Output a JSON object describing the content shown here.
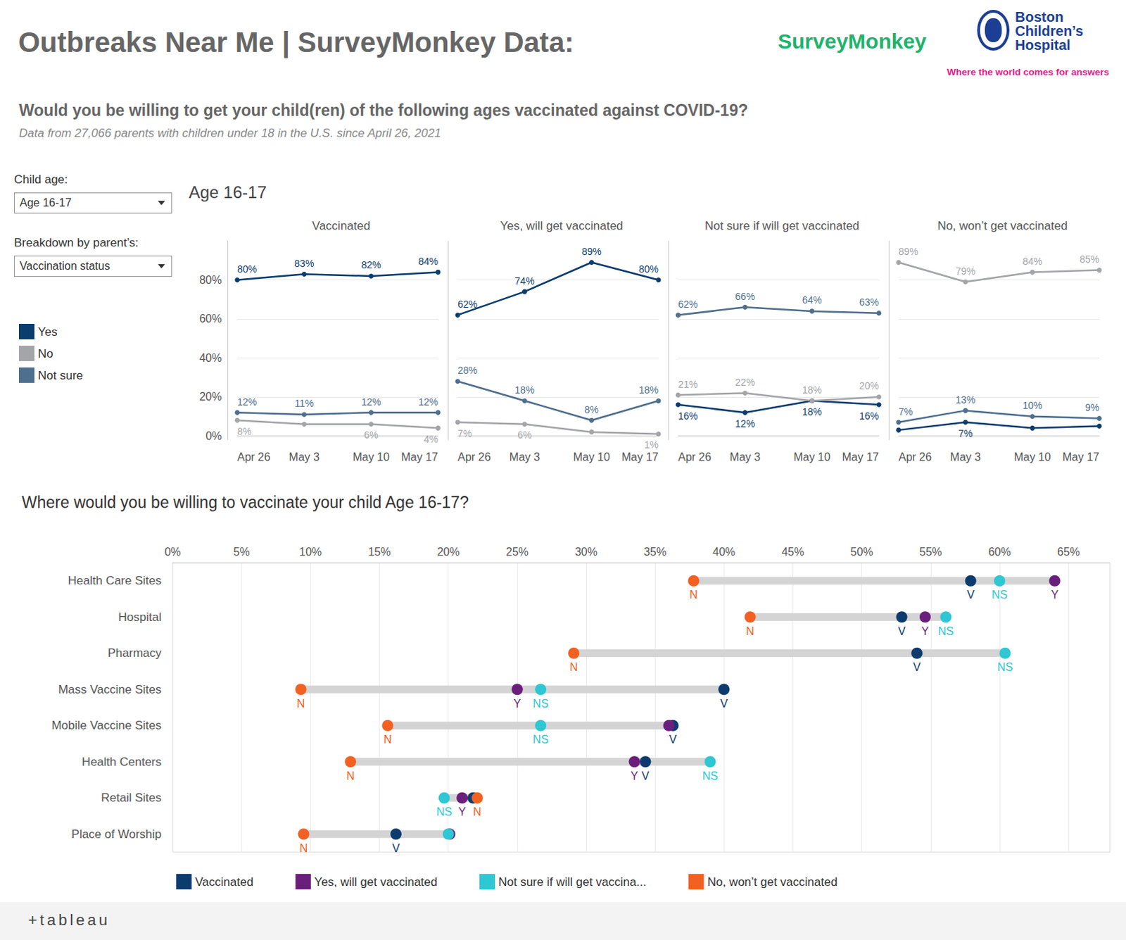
{
  "header": {
    "title": "Outbreaks Near Me | SurveyMonkey Data:",
    "brand": "SurveyMonkey",
    "hospital": [
      "Boston",
      "Children’s",
      "Hospital"
    ],
    "tagline": "Where the world comes for answers",
    "footer": "+tableau"
  },
  "controls": [
    {
      "label": "Child age:",
      "value": "Age 16-17"
    },
    {
      "label": "Breakdown by parent’s:",
      "value": "Vaccination status"
    }
  ],
  "chart_data": [
    {
      "type": "line",
      "title": "Would you be willing to get your child(ren) of the following ages vaccinated against COVID-19?",
      "subtitle": "Data from 27,066 parents with children under 18 in the U.S. since April 26, 2021",
      "panel_title": "Age 16-17",
      "categories": [
        "Apr 26",
        "May 3",
        "May 10",
        "May 17"
      ],
      "ylim": [
        -2,
        100
      ],
      "yticks": [
        {
          "value": 0,
          "label": "0%"
        },
        {
          "value": 20,
          "label": "20%"
        },
        {
          "value": 40,
          "label": "40%"
        },
        {
          "value": 60,
          "label": "60%"
        },
        {
          "value": 80,
          "label": "80%"
        }
      ],
      "grid": true,
      "legend": "left",
      "data_labels": true,
      "facets": [
        {
          "title": "Vaccinated",
          "series": [
            {
              "name": "Yes",
              "color": "#0b3d6e",
              "values": [
                80,
                83,
                82,
                84
              ],
              "value_labels": [
                "80%",
                "83%",
                "82%",
                "84%"
              ]
            },
            {
              "name": "No",
              "color": "#a3a5a8",
              "values": [
                8,
                6,
                6,
                4
              ],
              "value_labels": [
                "8%",
                null,
                "6%",
                "4%"
              ]
            },
            {
              "name": "Not sure",
              "color": "#4e6f8e",
              "values": [
                12,
                11,
                12,
                12
              ],
              "value_labels": [
                "12%",
                "11%",
                "12%",
                "12%"
              ]
            }
          ]
        },
        {
          "title": "Yes, will get vaccinated",
          "series": [
            {
              "name": "Yes",
              "color": "#0b3d6e",
              "values": [
                62,
                74,
                89,
                80
              ],
              "value_labels": [
                "62%",
                "74%",
                "89%",
                "80%"
              ]
            },
            {
              "name": "No",
              "color": "#a3a5a8",
              "values": [
                7,
                6,
                2,
                1
              ],
              "value_labels": [
                "7%",
                "6%",
                null,
                "1%"
              ]
            },
            {
              "name": "Not sure",
              "color": "#4e6f8e",
              "values": [
                28,
                18,
                8,
                18
              ],
              "value_labels": [
                "28%",
                "18%",
                "8%",
                "18%"
              ]
            }
          ]
        },
        {
          "title": "Not sure if will get vaccinated",
          "series": [
            {
              "name": "Yes",
              "color": "#0b3d6e",
              "values": [
                16,
                12,
                18,
                16
              ],
              "value_labels": [
                "16%",
                "12%",
                "18%",
                "16%"
              ]
            },
            {
              "name": "No",
              "color": "#a3a5a8",
              "values": [
                21,
                22,
                18,
                20
              ],
              "value_labels": [
                "21%",
                "22%",
                "18%",
                "20%"
              ]
            },
            {
              "name": "Not sure",
              "color": "#4e6f8e",
              "values": [
                62,
                66,
                64,
                63
              ],
              "value_labels": [
                "62%",
                "66%",
                "64%",
                "63%"
              ]
            }
          ]
        },
        {
          "title": "No, won’t get vaccinated",
          "series": [
            {
              "name": "Yes",
              "color": "#0b3d6e",
              "values": [
                3,
                7,
                4,
                5
              ],
              "value_labels": [
                null,
                "7%",
                null,
                null
              ]
            },
            {
              "name": "No",
              "color": "#a3a5a8",
              "values": [
                89,
                79,
                84,
                85
              ],
              "value_labels": [
                "89%",
                "79%",
                "84%",
                "85%"
              ]
            },
            {
              "name": "Not sure",
              "color": "#4e6f8e",
              "values": [
                7,
                13,
                10,
                9
              ],
              "value_labels": [
                "7%",
                "13%",
                "10%",
                "9%"
              ]
            }
          ]
        }
      ]
    },
    {
      "type": "scatter",
      "title": "Where would you be willing to vaccinate your child Age 16-17?",
      "orientation": "horizontal",
      "categories": [
        "Health Care Sites",
        "Hospital",
        "Pharmacy",
        "Mass Vaccine Sites",
        "Mobile Vaccine Sites",
        "Health Centers",
        "Retail Sites",
        "Place of Worship"
      ],
      "xlim": [
        0,
        68
      ],
      "xticks": [
        {
          "value": 0,
          "label": "0%"
        },
        {
          "value": 5,
          "label": "5%"
        },
        {
          "value": 10,
          "label": "10%"
        },
        {
          "value": 15,
          "label": "15%"
        },
        {
          "value": 20,
          "label": "20%"
        },
        {
          "value": 25,
          "label": "25%"
        },
        {
          "value": 30,
          "label": "30%"
        },
        {
          "value": 35,
          "label": "35%"
        },
        {
          "value": 40,
          "label": "40%"
        },
        {
          "value": 45,
          "label": "45%"
        },
        {
          "value": 50,
          "label": "50%"
        },
        {
          "value": 55,
          "label": "55%"
        },
        {
          "value": 60,
          "label": "60%"
        },
        {
          "value": 65,
          "label": "65%"
        }
      ],
      "grid": true,
      "legend": "bottom",
      "data_labels": true,
      "series": [
        {
          "name": "Vaccinated",
          "color": "#0d3b6e",
          "values": [
            57.9,
            52.9,
            54.0,
            40.0,
            36.3,
            34.3,
            21.8,
            16.2
          ],
          "value_labels": [
            "V",
            "V",
            "V",
            "V",
            "V",
            "V",
            null,
            "V"
          ]
        },
        {
          "name": "Yes, will get vaccinated",
          "color": "#6b1f7c",
          "values": [
            64.0,
            54.6,
            null,
            25.0,
            36.0,
            33.5,
            21.0,
            20.1
          ],
          "value_labels": [
            "Y",
            "Y",
            null,
            "Y",
            null,
            "Y",
            "Y",
            null
          ]
        },
        {
          "name": "Not sure if will get vaccina...",
          "color": "#2ec7d3",
          "values": [
            60.0,
            56.1,
            60.4,
            26.7,
            26.7,
            39.0,
            19.7,
            20.0
          ],
          "value_labels": [
            "NS",
            "NS",
            "NS",
            "NS",
            "NS",
            "NS",
            "NS",
            null
          ]
        },
        {
          "name": "No, won’t get vaccinated",
          "color": "#f26122",
          "values": [
            37.8,
            41.9,
            29.1,
            9.3,
            15.6,
            12.9,
            22.1,
            9.5
          ],
          "value_labels": [
            "N",
            "N",
            "N",
            "N",
            "N",
            "N",
            "N",
            "N"
          ]
        }
      ]
    }
  ]
}
